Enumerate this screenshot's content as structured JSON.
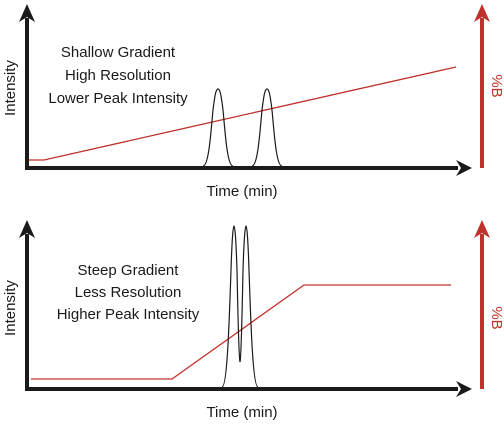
{
  "colors": {
    "axis": "#1a1a1a",
    "gradient": "#c0312b",
    "peak": "#1a1a1a"
  },
  "panels": [
    {
      "title_lines": [
        "Shallow Gradient",
        "High Resolution",
        "Lower Peak Intensity"
      ],
      "y_label": "Intensity",
      "x_label": "Time (min)",
      "right_label": "%B"
    },
    {
      "title_lines": [
        "Steep Gradient",
        "Less Resolution",
        "Higher Peak Intensity"
      ],
      "y_label": "Intensity",
      "x_label": "Time (min)",
      "right_label": "%B"
    }
  ]
}
